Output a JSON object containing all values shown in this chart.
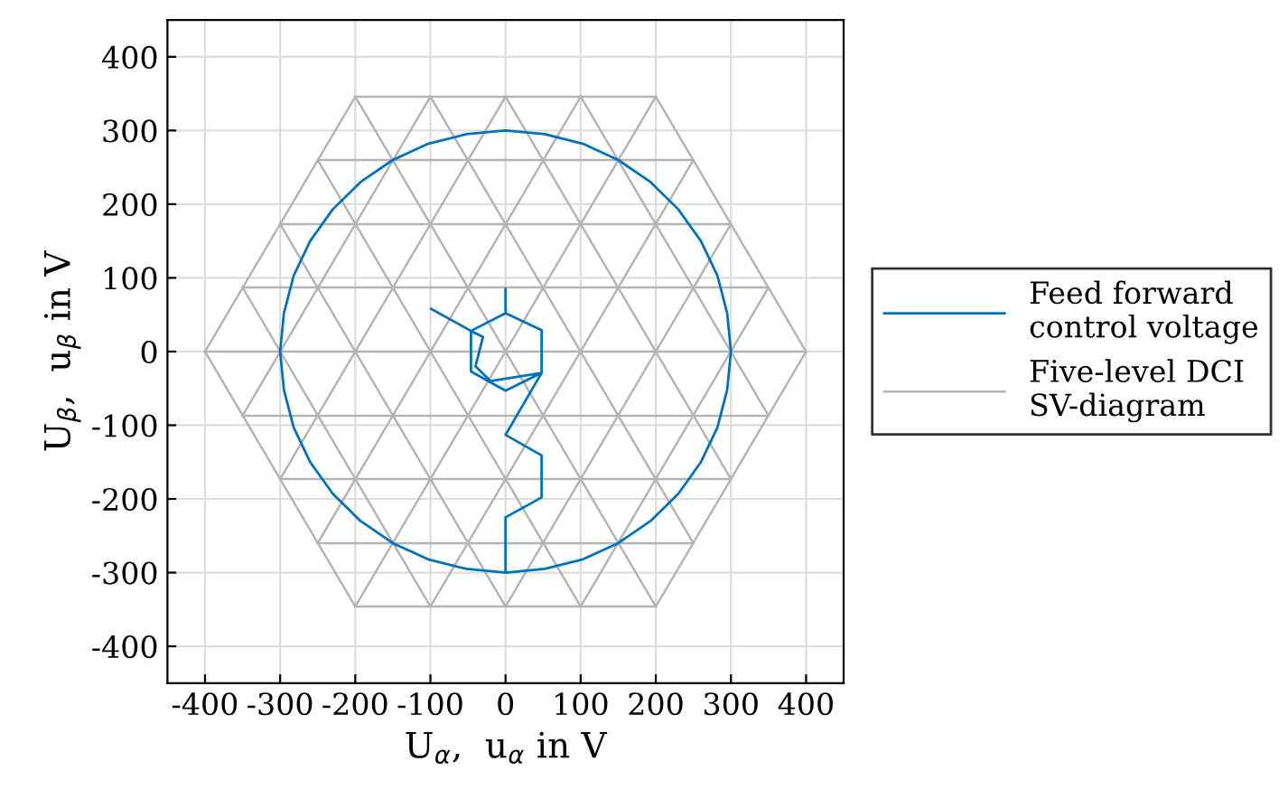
{
  "chart_data": {
    "type": "line",
    "xlabel": "U$_{α}$,  u$_{α}$ in V",
    "ylabel": "U$_{β}$,  u$_{β}$ in V",
    "xlim": [
      -450,
      450
    ],
    "ylim": [
      -450,
      450
    ],
    "xticks": [
      -400,
      -300,
      -200,
      -100,
      0,
      100,
      200,
      300,
      400
    ],
    "yticks": [
      -400,
      -300,
      -200,
      -100,
      0,
      100,
      200,
      300,
      400
    ],
    "grid": true,
    "legend": "right",
    "line_style": "solid",
    "marker": "none",
    "series": [
      {
        "name": "Feed forward\ncontrol voltage",
        "color": "#0072bd",
        "x": [
          -99,
          -46,
          0,
          0,
          0,
          48,
          48,
          0,
          -46,
          -46,
          -30,
          -40,
          -20,
          48,
          0,
          48,
          48,
          0,
          0,
          52,
          103,
          150,
          193,
          230,
          260,
          282,
          295,
          300,
          295,
          282,
          260,
          230,
          193,
          150,
          103,
          52,
          0,
          -52,
          -103,
          -150,
          -193,
          -230,
          -260,
          -282,
          -295,
          -300,
          -295,
          -282,
          -260,
          -230,
          -193,
          -150,
          -103,
          -52,
          0
        ],
        "values": [
          58,
          28,
          52,
          85,
          52,
          29,
          -29,
          -53,
          -27,
          28,
          20,
          -20,
          -40,
          -29,
          -113,
          -141,
          -198,
          -225,
          -300,
          -295,
          -282,
          -260,
          -230,
          -193,
          -150,
          -103,
          -52,
          0,
          52,
          103,
          150,
          193,
          230,
          260,
          282,
          295,
          300,
          295,
          282,
          260,
          230,
          193,
          150,
          103,
          52,
          0,
          -52,
          -103,
          -150,
          -193,
          -230,
          -260,
          -282,
          -295,
          -300
        ]
      },
      {
        "name": "Five-level DCI\nSV-diagram",
        "color": "#b4b4b4",
        "x": [
          -200,
          200
        ],
        "values": [
          346,
          346
        ]
      },
      {
        "color": "#b4b4b4",
        "x": [
          -250,
          250
        ],
        "values": [
          260,
          260
        ]
      },
      {
        "color": "#b4b4b4",
        "x": [
          -300,
          300
        ],
        "values": [
          173,
          173
        ]
      },
      {
        "color": "#b4b4b4",
        "x": [
          -350,
          350
        ],
        "values": [
          87,
          87
        ]
      },
      {
        "color": "#b4b4b4",
        "x": [
          -400,
          400
        ],
        "values": [
          0,
          0
        ]
      },
      {
        "color": "#b4b4b4",
        "x": [
          -350,
          350
        ],
        "values": [
          -87,
          -87
        ]
      },
      {
        "color": "#b4b4b4",
        "x": [
          -300,
          300
        ],
        "values": [
          -173,
          -173
        ]
      },
      {
        "color": "#b4b4b4",
        "x": [
          -250,
          250
        ],
        "values": [
          -260,
          -260
        ]
      },
      {
        "color": "#b4b4b4",
        "x": [
          -200,
          200
        ],
        "values": [
          -346,
          -346
        ]
      },
      {
        "color": "#b4b4b4",
        "x": [
          400,
          200
        ],
        "values": [
          0,
          -346
        ]
      },
      {
        "color": "#b4b4b4",
        "x": [
          350,
          100
        ],
        "values": [
          87,
          -346
        ]
      },
      {
        "color": "#b4b4b4",
        "x": [
          300,
          0
        ],
        "values": [
          173,
          -346
        ]
      },
      {
        "color": "#b4b4b4",
        "x": [
          250,
          -100
        ],
        "values": [
          260,
          -346
        ]
      },
      {
        "color": "#b4b4b4",
        "x": [
          200,
          -200
        ],
        "values": [
          346,
          -346
        ]
      },
      {
        "color": "#b4b4b4",
        "x": [
          100,
          -250
        ],
        "values": [
          346,
          -260
        ]
      },
      {
        "color": "#b4b4b4",
        "x": [
          0,
          -300
        ],
        "values": [
          346,
          -173
        ]
      },
      {
        "color": "#b4b4b4",
        "x": [
          -100,
          -350
        ],
        "values": [
          346,
          -87
        ]
      },
      {
        "color": "#b4b4b4",
        "x": [
          -200,
          -400
        ],
        "values": [
          346,
          0
        ]
      },
      {
        "color": "#b4b4b4",
        "x": [
          -400,
          -200
        ],
        "values": [
          0,
          -346
        ]
      },
      {
        "color": "#b4b4b4",
        "x": [
          -350,
          -100
        ],
        "values": [
          87,
          -346
        ]
      },
      {
        "color": "#b4b4b4",
        "x": [
          -300,
          0
        ],
        "values": [
          173,
          -346
        ]
      },
      {
        "color": "#b4b4b4",
        "x": [
          -250,
          100
        ],
        "values": [
          260,
          -346
        ]
      },
      {
        "color": "#b4b4b4",
        "x": [
          -200,
          200
        ],
        "values": [
          346,
          -346
        ]
      },
      {
        "color": "#b4b4b4",
        "x": [
          -100,
          250
        ],
        "values": [
          346,
          -260
        ]
      },
      {
        "color": "#b4b4b4",
        "x": [
          0,
          300
        ],
        "values": [
          346,
          -173
        ]
      },
      {
        "color": "#b4b4b4",
        "x": [
          100,
          350
        ],
        "values": [
          346,
          -87
        ]
      },
      {
        "color": "#b4b4b4",
        "x": [
          200,
          400
        ],
        "values": [
          346,
          0
        ]
      }
    ]
  }
}
